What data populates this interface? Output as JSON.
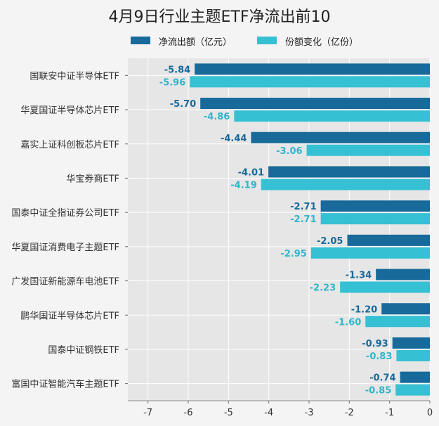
{
  "chart_data": {
    "type": "bar",
    "orientation": "horizontal",
    "title": "4月9日行业主题ETF净流出前10",
    "categories": [
      "国联安中证半导体ETF",
      "华夏国证半导体芯片ETF",
      "嘉实上证科创板芯片ETF",
      "华宝券商ETF",
      "国泰中证全指证券公司ETF",
      "华夏国证消费电子主题ETF",
      "广发国证新能源车电池ETF",
      "鹏华国证半导体芯片ETF",
      "国泰中证钢铁ETF",
      "富国中证智能汽车主题ETF"
    ],
    "series": [
      {
        "name": "净流出额（亿元）",
        "color": "#176a9a",
        "label_color": "#176a9a",
        "values": [
          -5.84,
          -5.7,
          -4.44,
          -4.01,
          -2.71,
          -2.05,
          -1.34,
          -1.2,
          -0.93,
          -0.74
        ],
        "labels": [
          "-5.84",
          "-5.70",
          "-4.44",
          "-4.01",
          "-2.71",
          "-2.05",
          "-1.34",
          "-1.20",
          "-0.93",
          "-0.74"
        ]
      },
      {
        "name": "份额变化（亿份）",
        "color": "#36c0d3",
        "label_color": "#2fb6cb",
        "values": [
          -5.96,
          -4.86,
          -3.06,
          -4.19,
          -2.71,
          -2.95,
          -2.23,
          -1.6,
          -0.83,
          -0.85
        ],
        "labels": [
          "-5.96",
          "-4.86",
          "-3.06",
          "-4.19",
          "-2.71",
          "-2.95",
          "-2.23",
          "-1.60",
          "-0.83",
          "-0.85"
        ]
      }
    ],
    "xlim": [
      -7.5,
      0
    ],
    "xticks": [
      -7,
      -6,
      -5,
      -4,
      -3,
      -2,
      -1,
      0
    ],
    "xtick_labels": [
      "-7",
      "-6",
      "-5",
      "-4",
      "-3",
      "-2",
      "-1",
      "0"
    ],
    "grid": true,
    "legend_position": "top"
  }
}
